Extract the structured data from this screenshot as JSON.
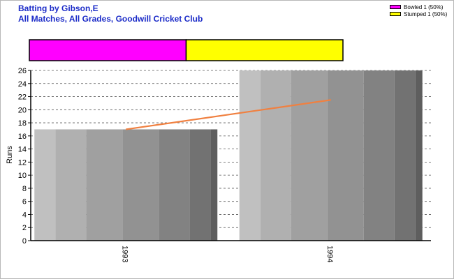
{
  "header": {
    "title": "Batting by Gibson,E",
    "subtitle": "All Matches, All Grades, Goodwill Cricket Club"
  },
  "legend": {
    "items": [
      {
        "label": "Bowled 1 (50%)",
        "color": "#ff00ff"
      },
      {
        "label": "Stumped 1 (50%)",
        "color": "#ffff00"
      }
    ]
  },
  "chart_data": [
    {
      "type": "bar",
      "title": "",
      "segments": [
        {
          "name": "Bowled",
          "value": 50,
          "color": "#ff00ff"
        },
        {
          "name": "Stumped",
          "value": 50,
          "color": "#ffff00"
        }
      ]
    },
    {
      "type": "bar",
      "title": "",
      "categories": [
        "1993",
        "1994"
      ],
      "series": [
        {
          "values": [
            17,
            26
          ],
          "color": "#a8a8a8"
        },
        {
          "type": "line",
          "values": [
            17,
            21.5
          ],
          "color": "#f08040"
        }
      ],
      "xlabel": "",
      "ylabel": "Runs",
      "ylim": [
        0,
        26
      ],
      "yticks": [
        0,
        2,
        4,
        6,
        8,
        10,
        12,
        14,
        16,
        18,
        20,
        22,
        24,
        26
      ],
      "grid": true,
      "legend_position": "top-right"
    }
  ]
}
